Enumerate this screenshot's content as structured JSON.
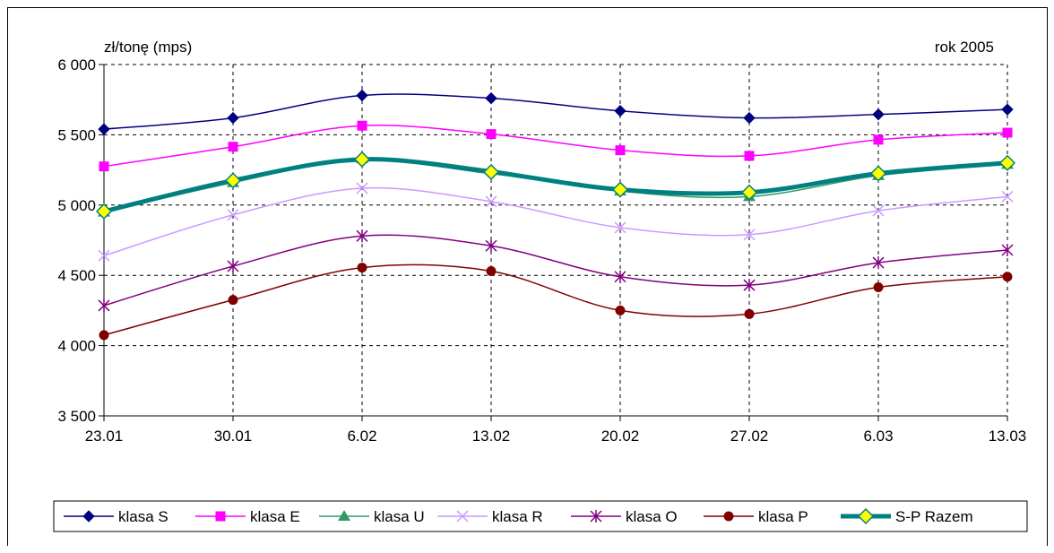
{
  "chart_data": {
    "type": "line",
    "ylabel": "zł/tonę (mps)",
    "annotation": "rok 2005",
    "categories": [
      "23.01",
      "30.01",
      "6.02",
      "13.02",
      "20.02",
      "27.02",
      "6.03",
      "13.03"
    ],
    "ylim": [
      3500,
      6000
    ],
    "yticks": [
      3500,
      4000,
      4500,
      5000,
      5500,
      6000
    ],
    "ytick_labels": [
      "3 500",
      "4 000",
      "4 500",
      "5 000",
      "5 500",
      "6 000"
    ],
    "grid": true,
    "legend_position": "bottom",
    "series": [
      {
        "name": "klasa S",
        "color": "#000080",
        "marker": "diamond",
        "values": [
          5540,
          5620,
          5780,
          5760,
          5670,
          5620,
          5645,
          5680
        ]
      },
      {
        "name": "klasa E",
        "color": "#FF00FF",
        "marker": "square",
        "values": [
          5275,
          5415,
          5565,
          5505,
          5390,
          5350,
          5465,
          5515
        ]
      },
      {
        "name": "klasa U",
        "color": "#339966",
        "marker": "triangle",
        "values": [
          4950,
          5160,
          5330,
          5250,
          5100,
          5060,
          5210,
          5290
        ]
      },
      {
        "name": "klasa R",
        "color": "#CC99FF",
        "marker": "x",
        "values": [
          4640,
          4930,
          5120,
          5025,
          4840,
          4790,
          4960,
          5060
        ]
      },
      {
        "name": "klasa O",
        "color": "#800080",
        "marker": "star",
        "values": [
          4285,
          4565,
          4780,
          4710,
          4490,
          4430,
          4590,
          4680
        ]
      },
      {
        "name": "klasa P",
        "color": "#800000",
        "marker": "circle",
        "values": [
          4075,
          4325,
          4555,
          4530,
          4250,
          4225,
          4415,
          4490
        ]
      },
      {
        "name": "S-P Razem",
        "color": "#008080",
        "marker": "diamond-yellow",
        "values": [
          4955,
          5175,
          5325,
          5235,
          5110,
          5090,
          5225,
          5300
        ]
      }
    ]
  }
}
